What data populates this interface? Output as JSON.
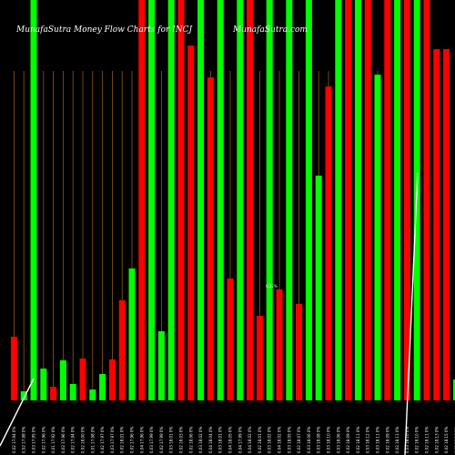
{
  "header": {
    "title": "MunafaSutra  Money Flow  Charts for INCJ",
    "site": "MunafaSutra.com"
  },
  "chart_data": {
    "type": "bar",
    "title": "MunafaSutra  Money Flow  Charts for INCJ",
    "grid": true,
    "colors": {
      "up": "#00ff00",
      "down": "#ff0000",
      "grid": "#8a5a1a",
      "text": "#ffffff",
      "background": "#000000",
      "indicator": "#ffffff"
    },
    "categories": [
      "0.02 17.94 0%",
      "0.02 17.98 0%",
      "0.03 17.95 0%",
      "0.02 17.96 0%",
      "0.01 17.92 0%",
      "0.02 17.96 0%",
      "0.02 17.94 0%",
      "0.02 18.00 0%",
      "0.01 17.98 0%",
      "0.02 17.97 0%",
      "0.03 17.97 0%",
      "0.02 18.01 0%",
      "0.02 17.96 0%",
      "0.04 17.96 0%",
      "0.03 17.99 0%",
      "0.02 17.99 0%",
      "0.03 18.01 0%",
      "0.02 18.03 0%",
      "0.02 18.06 0%",
      "0.03 18.02 0%",
      "0.04 18.04 0%",
      "0.03 18.01 0%",
      "0.04 18.05 0%",
      "0.04 17.99 0%",
      "0.04 18.02 0%",
      "0.02 18.01 0%",
      "0.03 18.02 0%",
      "0.04 18.02 0%",
      "0.03 18.05 0%",
      "0.02 18.07 0%",
      "0.03 18.06 0%",
      "0.03 18.08 0%",
      "0.03 18.10 0%",
      "0.03 18.06 0%",
      "0.02 18.09 0%",
      "0.02 18.11 0%",
      "0.03 18.12 0%",
      "0.03 18.11 0%",
      "0.02 18.09 0%",
      "0.02 18.11 0%",
      "0.03 18.10 0%",
      "0.02 18.10 0%",
      "0.02 18.11 0%",
      "0.02 18.13 0%",
      "0.02 18.15 0%",
      "0.01 18.16 0%"
    ],
    "values": [
      70,
      10,
      440,
      35,
      15,
      44,
      18,
      46,
      12,
      29,
      45,
      110,
      145,
      440,
      440,
      76,
      440,
      440,
      390,
      440,
      355,
      440,
      134,
      440,
      440,
      93,
      440,
      122,
      440,
      106,
      440,
      247,
      345,
      440,
      440,
      440,
      440,
      358,
      440,
      440,
      440,
      440,
      440,
      386,
      386,
      23
    ],
    "directions": [
      "down",
      "up",
      "up",
      "up",
      "down",
      "up",
      "up",
      "down",
      "up",
      "up",
      "down",
      "down",
      "up",
      "down",
      "up",
      "up",
      "up",
      "down",
      "down",
      "up",
      "down",
      "up",
      "down",
      "up",
      "down",
      "down",
      "up",
      "down",
      "up",
      "down",
      "up",
      "up",
      "down",
      "up",
      "down",
      "up",
      "down",
      "up",
      "down",
      "up",
      "down",
      "up",
      "down",
      "down",
      "down",
      "up"
    ],
    "ylim": [
      0,
      440
    ],
    "annotations": [
      "0.22%"
    ]
  }
}
